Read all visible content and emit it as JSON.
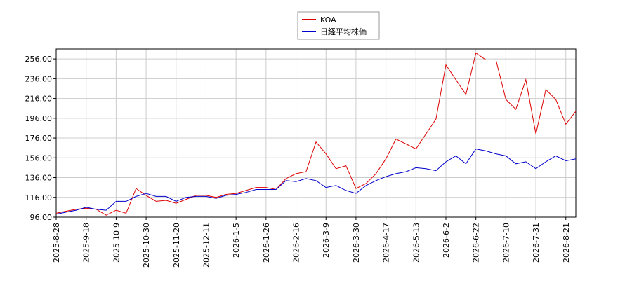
{
  "chart_data": {
    "type": "line",
    "categories": [
      "2025-8-28",
      null,
      null,
      "2025-9-18",
      null,
      null,
      "2025-10-9",
      null,
      null,
      "2025-10-30",
      null,
      null,
      "2025-11-20",
      null,
      null,
      "2025-12-11",
      null,
      null,
      "2026-1-5",
      null,
      null,
      "2026-1-26",
      null,
      null,
      "2026-2-16",
      null,
      null,
      "2026-3-9",
      null,
      null,
      "2026-3-30",
      null,
      null,
      "2026-4-17",
      null,
      null,
      "2026-5-13",
      null,
      null,
      "2026-6-2",
      null,
      null,
      "2026-6-22",
      null,
      null,
      "2026-7-10",
      null,
      null,
      "2026-7-31",
      null,
      null,
      "2026-8-21",
      null
    ],
    "series": [
      {
        "name": "KOA",
        "color": "#dd0000",
        "values": [
          100,
          102,
          104,
          105,
          104,
          98,
          103,
          100,
          125,
          118,
          112,
          113,
          110,
          114,
          118,
          118,
          116,
          119,
          120,
          123,
          126,
          126,
          124,
          135,
          140,
          142,
          172,
          160,
          145,
          148,
          125,
          130,
          140,
          155,
          175,
          170,
          165,
          180,
          195,
          250,
          235,
          220,
          262,
          255,
          255,
          215,
          205,
          235,
          180,
          225,
          215,
          190,
          203
        ]
      },
      {
        "name": "日経平均株価",
        "color": "#0000cc",
        "values": [
          99,
          101,
          103,
          106,
          104,
          103,
          112,
          112,
          117,
          120,
          117,
          117,
          112,
          116,
          117,
          117,
          115,
          118,
          119,
          121,
          124,
          124,
          124,
          133,
          132,
          135,
          133,
          126,
          128,
          123,
          120,
          128,
          133,
          137,
          140,
          142,
          146,
          145,
          143,
          152,
          158,
          150,
          165,
          163,
          160,
          158,
          150,
          152,
          145,
          152,
          158,
          153,
          155
        ]
      }
    ],
    "ylim": [
      96,
      266
    ],
    "yticks": [
      {
        "value": 96,
        "label": "96.00"
      },
      {
        "value": 116,
        "label": "116.00"
      },
      {
        "value": 136,
        "label": "136.00"
      },
      {
        "value": 156,
        "label": "156.00"
      },
      {
        "value": 176,
        "label": "176.00"
      },
      {
        "value": 196,
        "label": "196.00"
      },
      {
        "value": 216,
        "label": "216.00"
      },
      {
        "value": 236,
        "label": "236.00"
      },
      {
        "value": 256,
        "label": "256.00"
      }
    ],
    "grid": true
  }
}
